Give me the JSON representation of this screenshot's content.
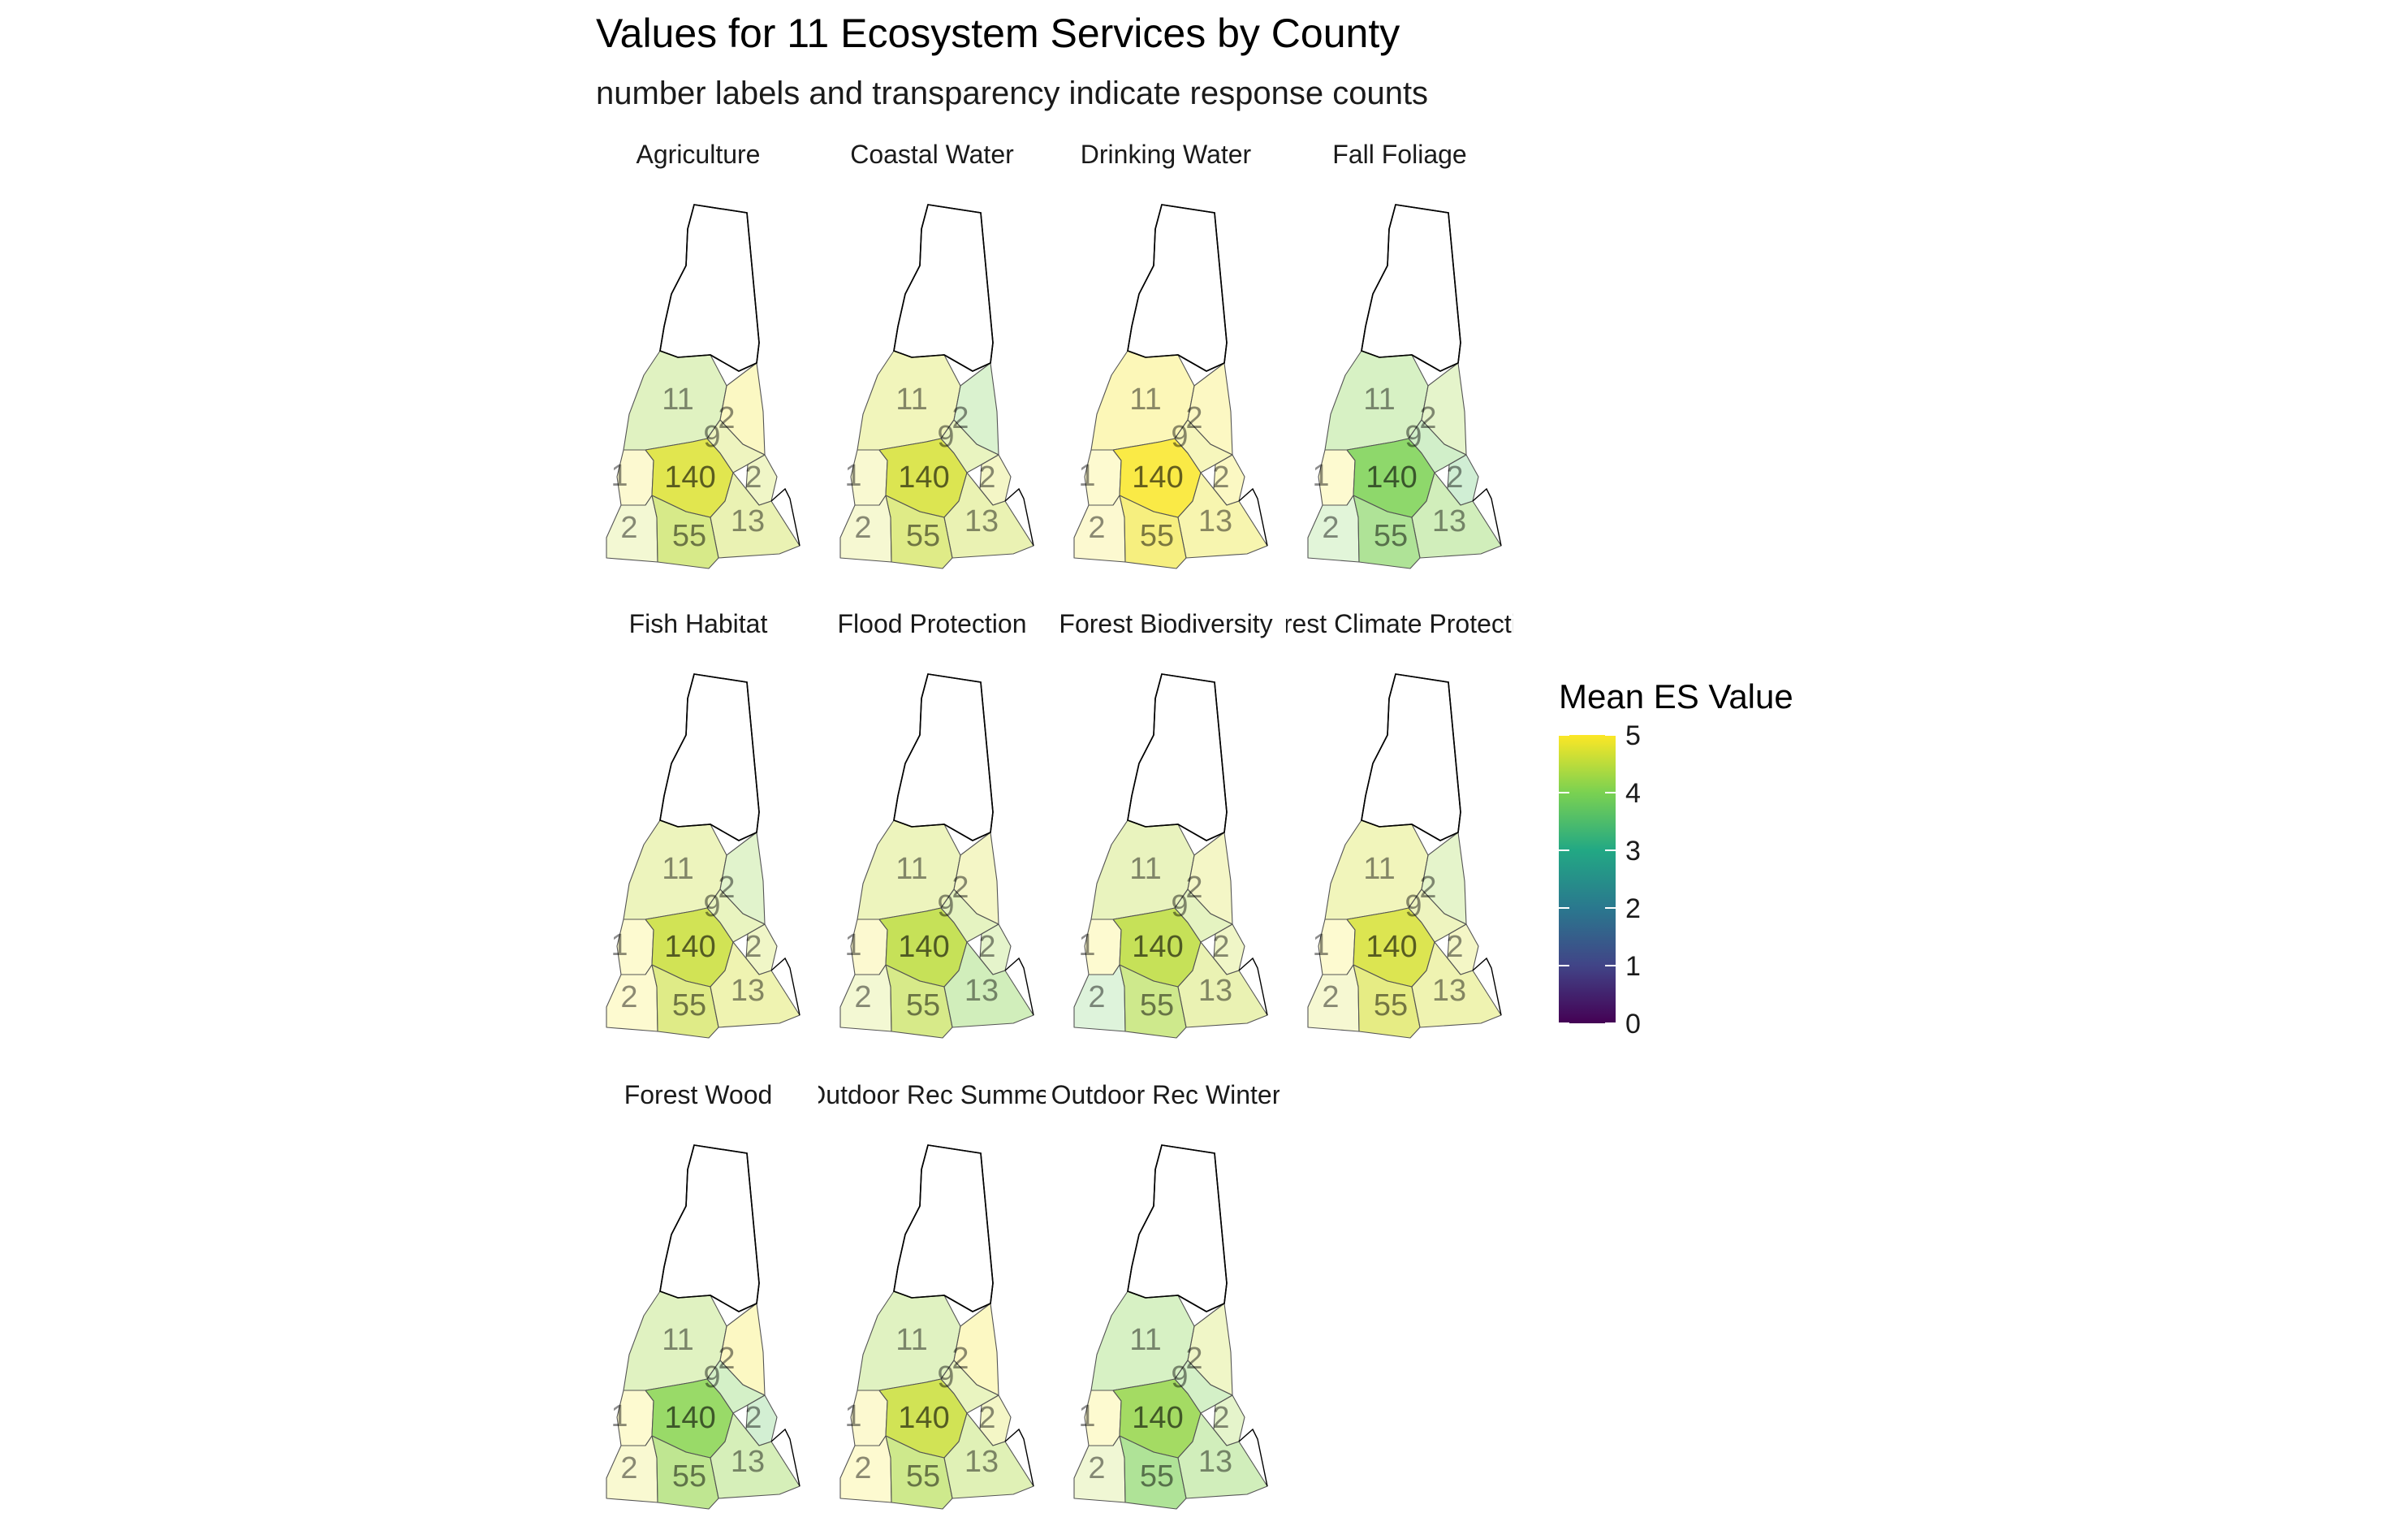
{
  "chart_data": {
    "type": "choropleth-facets",
    "title": "Values for 11 Ecosystem Services by County",
    "subtitle": "number labels and transparency indicate response counts",
    "legend": {
      "title": "Mean ES Value",
      "position": "right",
      "scale": "viridis",
      "range": [
        0,
        5
      ],
      "ticks": [
        "5",
        "4",
        "3",
        "2",
        "1",
        "0"
      ]
    },
    "counties": [
      "north",
      "northwest",
      "northeast",
      "west",
      "central",
      "mideast",
      "east",
      "southwest",
      "south",
      "southeast"
    ],
    "response_counts": {
      "north": "",
      "northwest": "11",
      "northeast": "2",
      "west": "1",
      "central": "140",
      "mideast": "9",
      "east": "2",
      "southwest": "2",
      "south": "55",
      "southeast": "13"
    },
    "panels": [
      {
        "label": "Agriculture",
        "values": {
          "north": null,
          "northwest": 4.3,
          "northeast": 4.9,
          "west": 4.9,
          "central": 4.75,
          "mideast": 4.6,
          "east": 4.6,
          "southwest": 4.6,
          "south": 4.5,
          "southeast": 4.6
        }
      },
      {
        "label": "Coastal Water",
        "values": {
          "north": null,
          "northwest": 4.7,
          "northeast": 4.0,
          "west": 4.8,
          "central": 4.7,
          "mideast": 4.5,
          "east": 4.7,
          "southwest": 4.7,
          "south": 4.6,
          "southeast": 4.6
        }
      },
      {
        "label": "Drinking Water",
        "values": {
          "north": null,
          "northwest": 4.95,
          "northeast": 4.95,
          "west": 4.95,
          "central": 4.97,
          "mideast": 4.8,
          "east": 4.9,
          "southwest": 4.9,
          "south": 4.9,
          "southeast": 4.85
        }
      },
      {
        "label": "Fall Foliage",
        "values": {
          "north": null,
          "northwest": 4.1,
          "northeast": 4.3,
          "west": 4.95,
          "central": 4.0,
          "mideast": 3.9,
          "east": 3.6,
          "southwest": 4.0,
          "south": 4.0,
          "southeast": 4.1
        }
      },
      {
        "label": "Fish Habitat",
        "values": {
          "north": null,
          "northwest": 4.6,
          "northeast": 4.2,
          "west": 4.95,
          "central": 4.6,
          "mideast": 4.5,
          "east": 4.6,
          "southwest": 4.95,
          "south": 4.6,
          "southeast": 4.7
        }
      },
      {
        "label": "Flood Protection",
        "values": {
          "north": null,
          "northwest": 4.6,
          "northeast": 4.7,
          "west": 4.9,
          "central": 4.5,
          "mideast": 4.4,
          "east": 4.3,
          "southwest": 4.6,
          "south": 4.5,
          "southeast": 4.1
        }
      },
      {
        "label": "Forest Biodiversity",
        "values": {
          "north": null,
          "northwest": 4.5,
          "northeast": 4.7,
          "west": 4.95,
          "central": 4.5,
          "mideast": 4.4,
          "east": 4.6,
          "southwest": 3.8,
          "south": 4.4,
          "southeast": 4.6
        }
      },
      {
        "label": "Forest Climate Protection",
        "values": {
          "north": null,
          "northwest": 4.7,
          "northeast": 4.3,
          "west": 4.95,
          "central": 4.7,
          "mideast": 4.6,
          "east": 4.7,
          "southwest": 4.7,
          "south": 4.7,
          "southeast": 4.7
        }
      },
      {
        "label": "Forest Wood",
        "values": {
          "north": null,
          "northwest": 4.3,
          "northeast": 4.95,
          "west": 4.95,
          "central": 4.1,
          "mideast": 4.0,
          "east": 3.7,
          "southwest": 4.8,
          "south": 4.2,
          "southeast": 4.2
        }
      },
      {
        "label": "Outdoor Rec Summer",
        "values": {
          "north": null,
          "northwest": 4.3,
          "northeast": 4.95,
          "west": 4.9,
          "central": 4.6,
          "mideast": 4.5,
          "east": 4.7,
          "southwest": 4.95,
          "south": 4.4,
          "southeast": 4.4
        }
      },
      {
        "label": "Outdoor Rec Winter",
        "values": {
          "north": null,
          "northwest": 4.1,
          "northeast": 4.6,
          "west": 4.95,
          "central": 4.2,
          "mideast": 4.0,
          "east": 4.3,
          "southwest": 4.5,
          "south": 4.0,
          "southeast": 4.1
        }
      }
    ]
  }
}
